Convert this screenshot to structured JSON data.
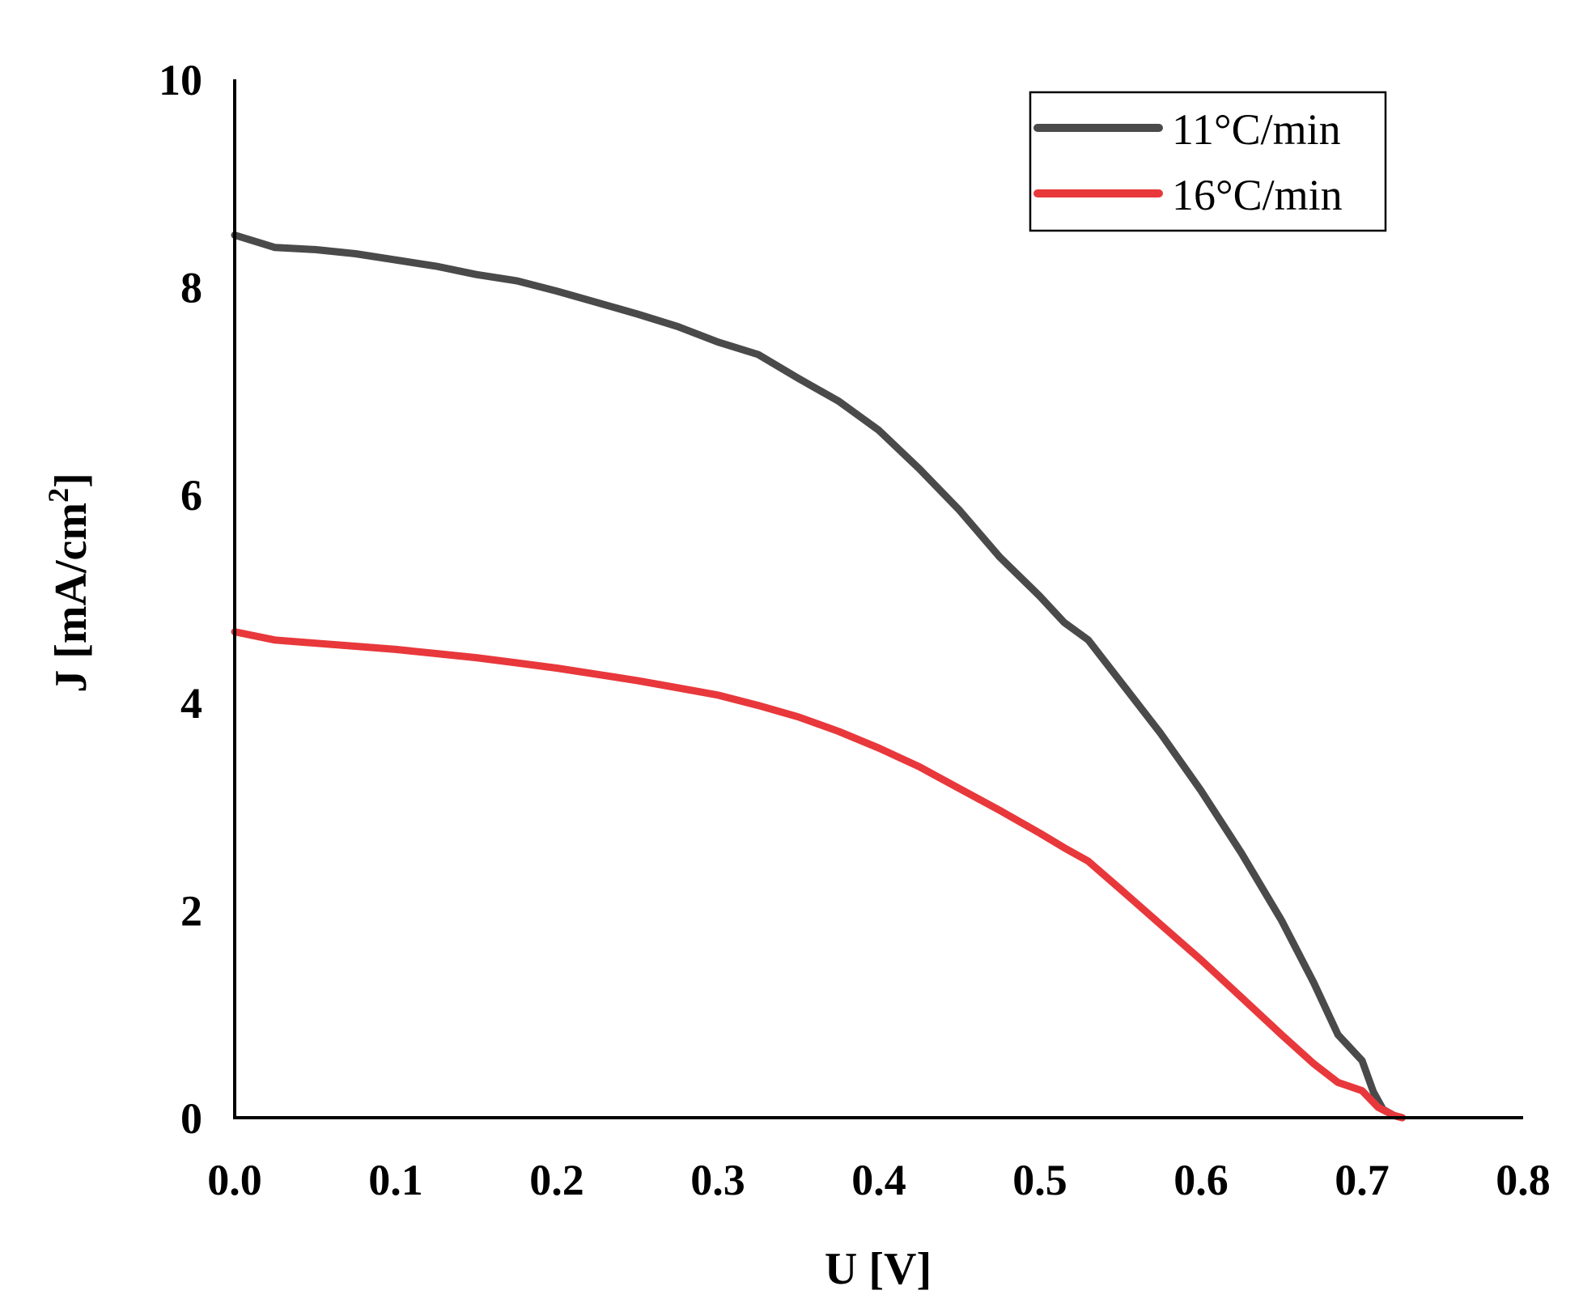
{
  "chart_data": {
    "type": "line",
    "title": "",
    "xlabel": "U [V]",
    "ylabel": {
      "prefix": "J [mA/cm",
      "superscript": "2",
      "suffix": "]"
    },
    "xlim": [
      0,
      0.8
    ],
    "ylim": [
      0,
      10
    ],
    "x_ticks": [
      "0.0",
      "0.1",
      "0.2",
      "0.3",
      "0.4",
      "0.5",
      "0.6",
      "0.7",
      "0.8"
    ],
    "y_ticks": [
      "0",
      "2",
      "4",
      "6",
      "8",
      "10"
    ],
    "grid": false,
    "legend_position": "top-right",
    "series": [
      {
        "name": "11°C/min",
        "color": "#4a4a4a",
        "x": [
          0.0,
          0.025,
          0.05,
          0.075,
          0.1,
          0.125,
          0.15,
          0.175,
          0.2,
          0.225,
          0.25,
          0.275,
          0.3,
          0.325,
          0.35,
          0.375,
          0.4,
          0.425,
          0.45,
          0.475,
          0.5,
          0.515,
          0.53,
          0.55,
          0.575,
          0.6,
          0.625,
          0.65,
          0.67,
          0.685,
          0.7,
          0.707,
          0.713,
          0.72,
          0.725
        ],
        "values": [
          8.5,
          8.38,
          8.36,
          8.32,
          8.26,
          8.2,
          8.12,
          8.06,
          7.96,
          7.85,
          7.74,
          7.62,
          7.47,
          7.35,
          7.12,
          6.9,
          6.62,
          6.25,
          5.85,
          5.4,
          5.02,
          4.77,
          4.6,
          4.2,
          3.7,
          3.15,
          2.55,
          1.9,
          1.3,
          0.8,
          0.55,
          0.25,
          0.08,
          0.02,
          0.0
        ]
      },
      {
        "name": "16°C/min",
        "color": "#e8383b",
        "x": [
          0.0,
          0.025,
          0.05,
          0.075,
          0.1,
          0.125,
          0.15,
          0.175,
          0.2,
          0.225,
          0.25,
          0.275,
          0.3,
          0.325,
          0.35,
          0.375,
          0.4,
          0.425,
          0.45,
          0.475,
          0.5,
          0.515,
          0.53,
          0.55,
          0.575,
          0.6,
          0.625,
          0.65,
          0.67,
          0.685,
          0.7,
          0.71,
          0.72,
          0.725
        ],
        "values": [
          4.68,
          4.6,
          4.57,
          4.54,
          4.51,
          4.47,
          4.43,
          4.38,
          4.33,
          4.27,
          4.21,
          4.14,
          4.07,
          3.97,
          3.86,
          3.72,
          3.56,
          3.38,
          3.17,
          2.96,
          2.74,
          2.6,
          2.47,
          2.2,
          1.86,
          1.52,
          1.16,
          0.8,
          0.52,
          0.34,
          0.26,
          0.1,
          0.02,
          0.0
        ]
      }
    ]
  }
}
